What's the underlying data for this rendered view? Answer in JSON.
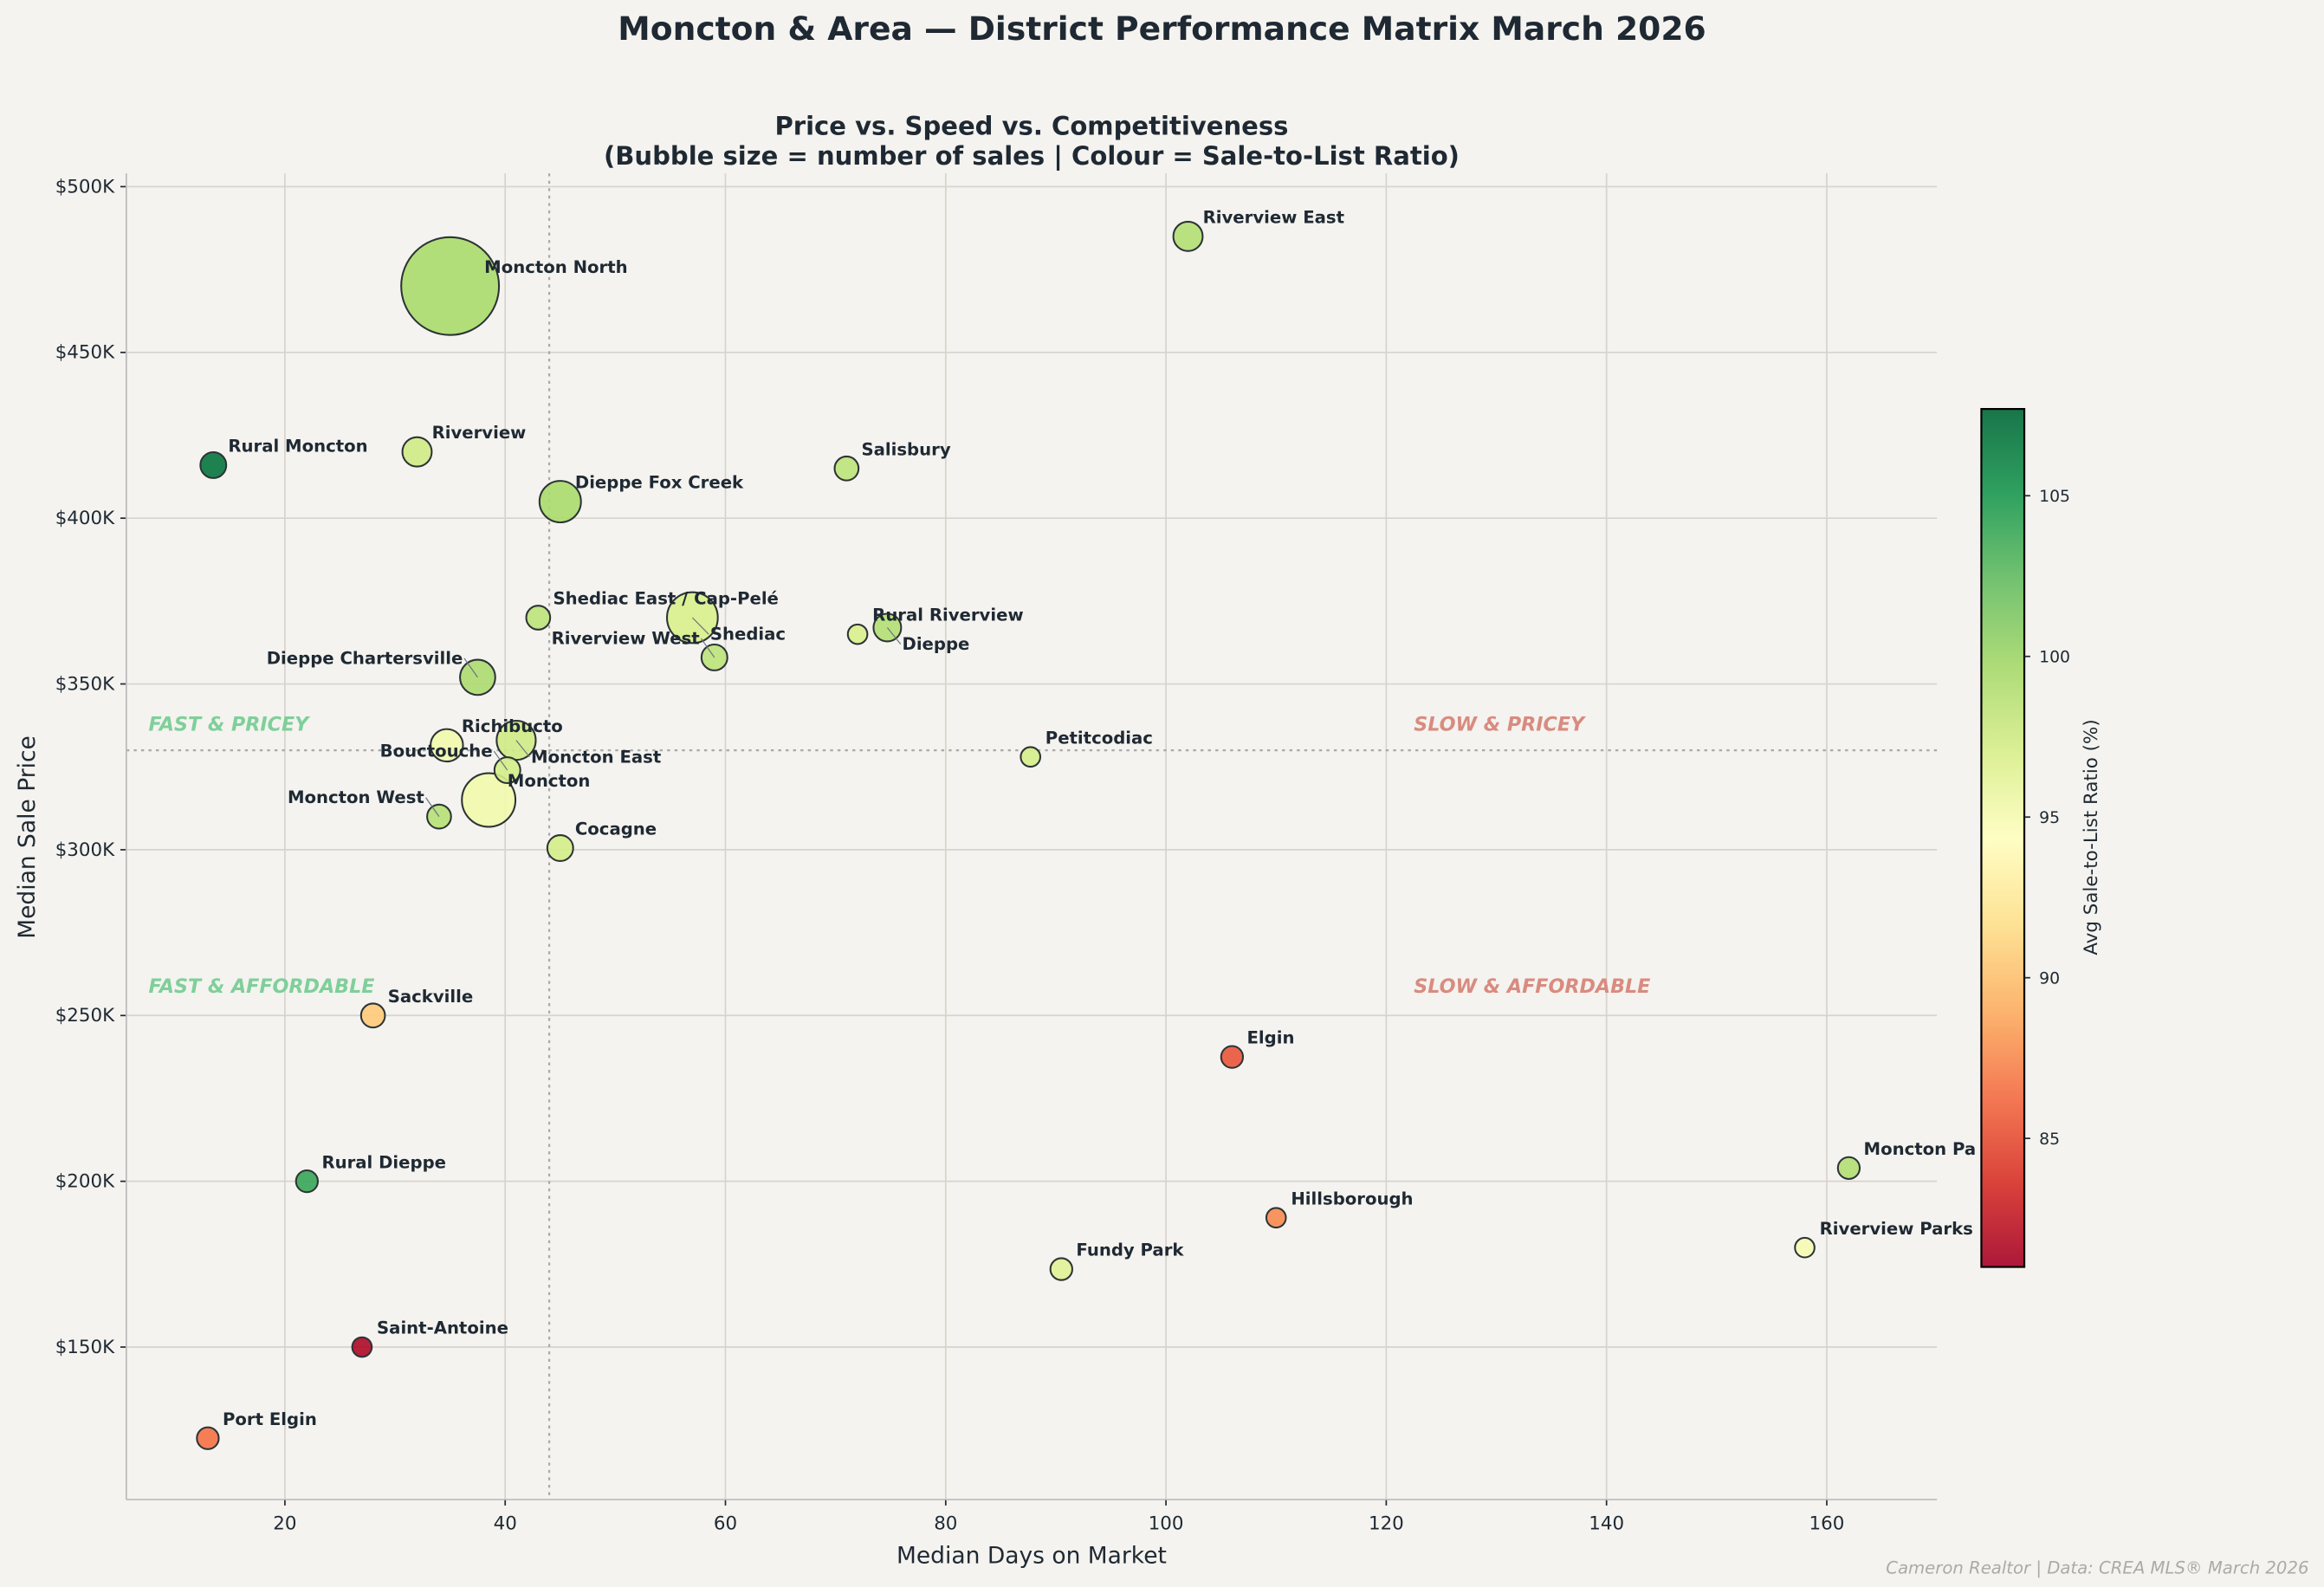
{
  "title": "Moncton & Area — District Performance Matrix  March 2026",
  "footer": "Cameron Realtor  |  Data: CREA MLS® March 2026",
  "chart_data": {
    "type": "scatter",
    "title": "Price vs. Speed vs. Competitiveness",
    "subtitle": "(Bubble size = number of sales  |  Colour = Sale-to-List Ratio)",
    "xlabel": "Median Days on Market",
    "ylabel": "Median Sale Price",
    "xlim": [
      5.6,
      170
    ],
    "ylim": [
      104000,
      504000
    ],
    "xticks": [
      20,
      40,
      60,
      80,
      100,
      120,
      140,
      160
    ],
    "yticks": [
      150000,
      200000,
      250000,
      300000,
      350000,
      400000,
      450000,
      500000
    ],
    "ytick_labels": [
      "$150K",
      "$200K",
      "$250K",
      "$300K",
      "$350K",
      "$400K",
      "$450K",
      "$500K"
    ],
    "grid": true,
    "colormap": "RdYlGn",
    "colorbar": {
      "label": "Avg Sale-to-List Ratio (%)",
      "range": [
        81,
        107.7
      ],
      "ticks": [
        85,
        90,
        95,
        100,
        105
      ]
    },
    "reference_lines": {
      "median_days": 44,
      "median_price": 330000
    },
    "quadrant_labels": {
      "top_left": "FAST & PRICEY",
      "top_right": "SLOW & PRICEY",
      "bottom_left": "FAST & AFFORDABLE",
      "bottom_right": "SLOW & AFFORDABLE"
    },
    "quadrant_colors": {
      "fast": "#7fcf9a",
      "slow": "#d98b80"
    },
    "points": [
      {
        "name": "Moncton North",
        "days": 35,
        "price": 470000,
        "sales": 100,
        "ratio": 99.5
      },
      {
        "name": "Riverview East",
        "days": 102,
        "price": 485000,
        "sales": 9,
        "ratio": 99
      },
      {
        "name": "Rural Moncton",
        "days": 13.5,
        "price": 416000,
        "sales": 7,
        "ratio": 107
      },
      {
        "name": "Riverview",
        "days": 32,
        "price": 420000,
        "sales": 9,
        "ratio": 97.5
      },
      {
        "name": "Dieppe Fox Creek",
        "days": 45,
        "price": 405000,
        "sales": 18,
        "ratio": 99.5
      },
      {
        "name": "Salisbury",
        "days": 71,
        "price": 415000,
        "sales": 6,
        "ratio": 98.5
      },
      {
        "name": "Shediac East / Cap-Pelé",
        "days": 43,
        "price": 370000,
        "sales": 6,
        "ratio": 98.5
      },
      {
        "name": "Shediac",
        "days": 57,
        "price": 370000,
        "sales": 27,
        "ratio": 97
      },
      {
        "name": "Rural Riverview",
        "days": 72,
        "price": 365000,
        "sales": 4,
        "ratio": 97
      },
      {
        "name": "Dieppe",
        "days": 74.7,
        "price": 367000,
        "sales": 8,
        "ratio": 99
      },
      {
        "name": "Riverview West",
        "days": 59,
        "price": 358000,
        "sales": 7,
        "ratio": 98.5
      },
      {
        "name": "Dieppe Chartersville",
        "days": 37.5,
        "price": 352000,
        "sales": 13,
        "ratio": 99.3
      },
      {
        "name": "Richibucto",
        "days": 34.7,
        "price": 331500,
        "sales": 11,
        "ratio": 95.3
      },
      {
        "name": "Moncton East",
        "days": 41,
        "price": 333000,
        "sales": 16,
        "ratio": 97.5
      },
      {
        "name": "Bouctouche",
        "days": 40.2,
        "price": 324000,
        "sales": 7,
        "ratio": 97.3
      },
      {
        "name": "Moncton",
        "days": 38.5,
        "price": 315000,
        "sales": 30,
        "ratio": 95.3
      },
      {
        "name": "Moncton West",
        "days": 34,
        "price": 310000,
        "sales": 6,
        "ratio": 98.8
      },
      {
        "name": "Cocagne",
        "days": 45,
        "price": 300500,
        "sales": 7,
        "ratio": 97.3
      },
      {
        "name": "Petitcodiac",
        "days": 87.7,
        "price": 328000,
        "sales": 4,
        "ratio": 97.2
      },
      {
        "name": "Sackville",
        "days": 28,
        "price": 250000,
        "sales": 6,
        "ratio": 90.5
      },
      {
        "name": "Elgin",
        "days": 106,
        "price": 237500,
        "sales": 5,
        "ratio": 85.3
      },
      {
        "name": "Rural Dieppe",
        "days": 22,
        "price": 200000,
        "sales": 5,
        "ratio": 104
      },
      {
        "name": "Moncton Pa",
        "days": 162,
        "price": 204000,
        "sales": 5,
        "ratio": 99
      },
      {
        "name": "Hillsborough",
        "days": 110,
        "price": 189000,
        "sales": 4,
        "ratio": 87.5
      },
      {
        "name": "Riverview Parks",
        "days": 158,
        "price": 180000,
        "sales": 4,
        "ratio": 95
      },
      {
        "name": "Fundy Park",
        "days": 90.5,
        "price": 173500,
        "sales": 5,
        "ratio": 96.5
      },
      {
        "name": "Saint-Antoine",
        "days": 27,
        "price": 150000,
        "sales": 4,
        "ratio": 81.5
      },
      {
        "name": "Port Elgin",
        "days": 13,
        "price": 122500,
        "sales": 5,
        "ratio": 86.5
      }
    ]
  }
}
